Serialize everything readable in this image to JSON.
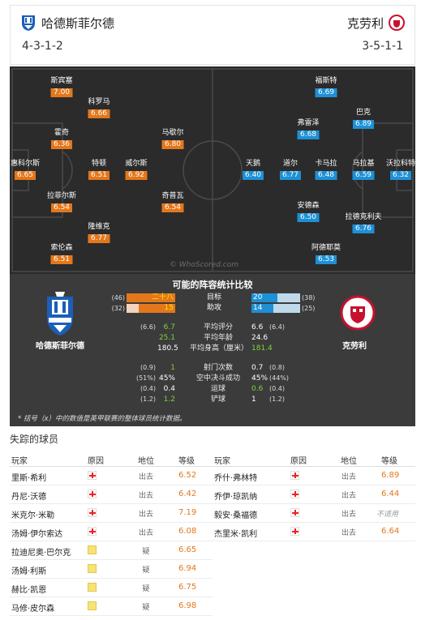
{
  "header": {
    "home_name": "哈德斯菲尔德",
    "away_name": "克劳利",
    "home_formation": "4-3-1-2",
    "away_formation": "3-5-1-1"
  },
  "pitch": {
    "watermark": "© WhoScored.com",
    "home_players": [
      {
        "name": "斯宾塞",
        "rating": "7.00"
      },
      {
        "name": "科罗马",
        "rating": "6.66"
      },
      {
        "name": "霍奇",
        "rating": "6.36"
      },
      {
        "name": "马歇尔",
        "rating": "6.80"
      },
      {
        "name": "惠科尔斯",
        "rating": "6.65"
      },
      {
        "name": "特顿",
        "rating": "6.51"
      },
      {
        "name": "威尔斯",
        "rating": "6.92"
      },
      {
        "name": "拉菲尔斯",
        "rating": "6.54"
      },
      {
        "name": "奇普瓦",
        "rating": "6.54"
      },
      {
        "name": "隆维克",
        "rating": "6.77"
      },
      {
        "name": "索伦森",
        "rating": "6.51"
      }
    ],
    "away_players": [
      {
        "name": "福斯特",
        "rating": "6.69"
      },
      {
        "name": "巴克",
        "rating": "6.89"
      },
      {
        "name": "弗雷泽",
        "rating": "6.68"
      },
      {
        "name": "天鹅",
        "rating": "6.40"
      },
      {
        "name": "道尔",
        "rating": "6.77"
      },
      {
        "name": "卡马拉",
        "rating": "6.48"
      },
      {
        "name": "马拉基",
        "rating": "6.59"
      },
      {
        "name": "沃拉科特",
        "rating": "6.32"
      },
      {
        "name": "安德森",
        "rating": "6.50"
      },
      {
        "name": "拉德克利夫",
        "rating": "6.76"
      },
      {
        "name": "阿德耶莫",
        "rating": "6.53"
      }
    ]
  },
  "stats": {
    "title": "可能的阵容统计比较",
    "home_name": "哈德斯菲尔德",
    "away_name": "克劳利",
    "bars": [
      {
        "label": "目标",
        "home_sub": "(46)",
        "home": "二十八",
        "home_frac": 1.0,
        "away": "20",
        "away_sub": "(38)",
        "away_frac": 0.53
      },
      {
        "label": "助攻",
        "home_sub": "(32)",
        "home": "15",
        "home_frac": 0.75,
        "away": "14",
        "away_sub": "(25)",
        "away_frac": 0.45
      }
    ],
    "rows1": [
      {
        "label": "平均评分",
        "home_sub": "(6.6)",
        "home": "6.7",
        "home_color": "green",
        "away": "6.6",
        "away_sub": "(6.4)",
        "away_color": "white"
      },
      {
        "label": "平均年龄",
        "home_sub": "",
        "home": "25.1",
        "home_color": "green",
        "away": "24.6",
        "away_sub": "",
        "away_color": "white"
      },
      {
        "label": "平均身高（厘米）",
        "home_sub": "",
        "home": "180.5",
        "home_color": "white",
        "away": "181.4",
        "away_sub": "",
        "away_color": "green"
      }
    ],
    "rows2": [
      {
        "label": "射门次数",
        "home_sub": "(0.9)",
        "home": "1",
        "home_color": "green",
        "away": "0.7",
        "away_sub": "(0.8)",
        "away_color": "white"
      },
      {
        "label": "空中决斗成功",
        "home_sub": "(51%)",
        "home": "45%",
        "home_color": "white",
        "away": "45%",
        "away_sub": "(44%)",
        "away_color": "white"
      },
      {
        "label": "运球",
        "home_sub": "(0.4)",
        "home": "0.4",
        "home_color": "white",
        "away": "0.6",
        "away_sub": "(0.4)",
        "away_color": "green"
      },
      {
        "label": "铲球",
        "home_sub": "(1.2)",
        "home": "1.2",
        "home_color": "green",
        "away": "1",
        "away_sub": "(1.2)",
        "away_color": "white"
      }
    ],
    "footnote": "* 括号（x）中的数值是英甲联赛的整体球员统计数据。"
  },
  "missing": {
    "title": "失踪的球员",
    "headers": {
      "player": "玩家",
      "reason": "原因",
      "status": "地位",
      "rating": "等级"
    },
    "home": [
      {
        "name": "里斯·希利",
        "icon": "injury",
        "status": "出去",
        "rating": "6.52"
      },
      {
        "name": "丹尼·沃德",
        "icon": "injury",
        "status": "出去",
        "rating": "6.42"
      },
      {
        "name": "米克尔·米勒",
        "icon": "injury",
        "status": "出去",
        "rating": "7.19"
      },
      {
        "name": "汤姆·伊尔索达",
        "icon": "injury",
        "status": "出去",
        "rating": "6.08"
      },
      {
        "name": "拉迪尼奥·巴尔克",
        "icon": "doubt",
        "status": "疑",
        "rating": "6.65"
      },
      {
        "name": "汤姆·利斯",
        "icon": "doubt",
        "status": "疑",
        "rating": "6.94"
      },
      {
        "name": "赫比·凯恩",
        "icon": "doubt",
        "status": "疑",
        "rating": "6.75"
      },
      {
        "name": "马修·皮尔森",
        "icon": "doubt",
        "status": "疑",
        "rating": "6.98"
      }
    ],
    "away": [
      {
        "name": "乔什·弗林特",
        "icon": "injury",
        "status": "出去",
        "rating": "6.89"
      },
      {
        "name": "乔伊·琼凯纳",
        "icon": "injury",
        "status": "出去",
        "rating": "6.44"
      },
      {
        "name": "毅安·桑福德",
        "icon": "injury",
        "status": "出去",
        "rating": "不适用"
      },
      {
        "name": "杰里米·凯利",
        "icon": "injury",
        "status": "出去",
        "rating": "6.64"
      }
    ]
  }
}
